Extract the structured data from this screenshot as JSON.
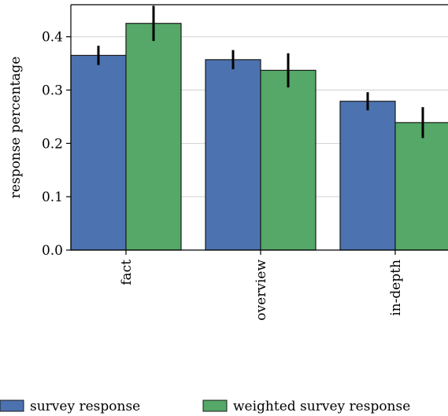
{
  "chart_data": {
    "type": "bar",
    "categories": [
      "fact",
      "overview",
      "in-depth"
    ],
    "series": [
      {
        "name": "survey response",
        "color": "#4c72b0",
        "values": [
          0.365,
          0.357,
          0.279
        ],
        "error": [
          0.018,
          0.018,
          0.017
        ]
      },
      {
        "name": "weighted survey response",
        "color": "#55a868",
        "values": [
          0.425,
          0.337,
          0.239
        ],
        "error": [
          0.033,
          0.032,
          0.029
        ]
      }
    ],
    "ylabel": "response percentage",
    "ylim": [
      0,
      0.46
    ],
    "yticks": [
      0.0,
      0.1,
      0.2,
      0.3,
      0.4
    ],
    "ytick_labels": [
      "0.0",
      "0.1",
      "0.2",
      "0.3",
      "0.4"
    ],
    "grid": true,
    "legend_position": "bottom"
  }
}
